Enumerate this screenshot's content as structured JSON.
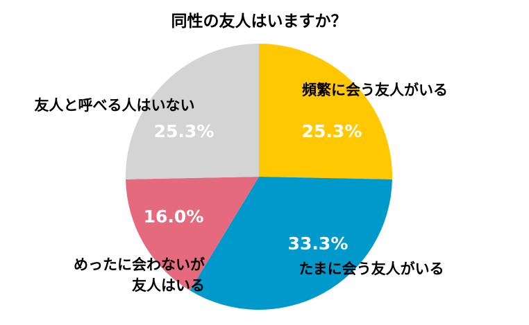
{
  "chart_data": {
    "type": "pie",
    "title": "同性の友人はいますか？",
    "categories": [
      "頻繁に会う友人がいる",
      "たまに会う友人がいる",
      "めったに会わないが\n友人はいる",
      "友人と呼べる人はいない"
    ],
    "values": [
      25.3,
      33.3,
      16.0,
      25.3
    ],
    "value_labels": [
      "25.3%",
      "33.3%",
      "16.0%",
      "25.3%"
    ],
    "colors": [
      "#FFC800",
      "#0099CC",
      "#E66A7E",
      "#D4D4D4"
    ]
  }
}
